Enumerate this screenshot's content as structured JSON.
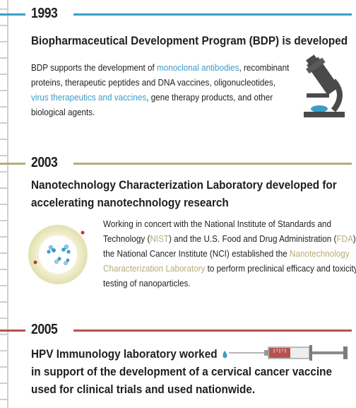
{
  "colors": {
    "blue_accent": "#3d9cc6",
    "tan_accent": "#b5ad78",
    "red_accent": "#b5524f",
    "tick_gray": "#cfcfcf"
  },
  "events": [
    {
      "year": "1993",
      "title": "Biopharmaceutical Development Program (BDP) is developed",
      "body": {
        "l1a": "BDP supports the development of ",
        "l1link": "monoclonal antibodies",
        "l1b": ", recombinant",
        "l2": "proteins, therapeutic peptides and DNA vaccines, oligonucleotides,",
        "l3link": "virus therapeutics and vaccines",
        "l3b": ", gene therapy products, and other",
        "l4": "biological agents."
      },
      "icon": "microscope-icon"
    },
    {
      "year": "2003",
      "title_l1": "Nanotechnology Characterization Laboratory developed for",
      "title_l2": "accelerating nanotechnology research",
      "body": {
        "l1": "Working in concert with the National Institute of Standards and",
        "l2a": "Technology (",
        "l2link": "NIST",
        "l2b": ") and the U.S. Food and Drug Administration (",
        "l2link2": "FDA",
        "l2c": "),",
        "l3a": "the National Cancer Institute (NCI) established the ",
        "l3link": "Nanotechnology",
        "l4link": "Characterization Laboratory",
        "l4b": " to perform preclinical efficacy and toxicity",
        "l5": "testing of nanoparticles."
      },
      "icon": "nanoparticle-icon"
    },
    {
      "year": "2005",
      "title_l1": "HPV Immunology laboratory worked",
      "title_l2": "in support of the development of a cervical cancer vaccine",
      "title_l3": "used for clinical trials and used nationwide.",
      "icon": "syringe-icon"
    }
  ]
}
